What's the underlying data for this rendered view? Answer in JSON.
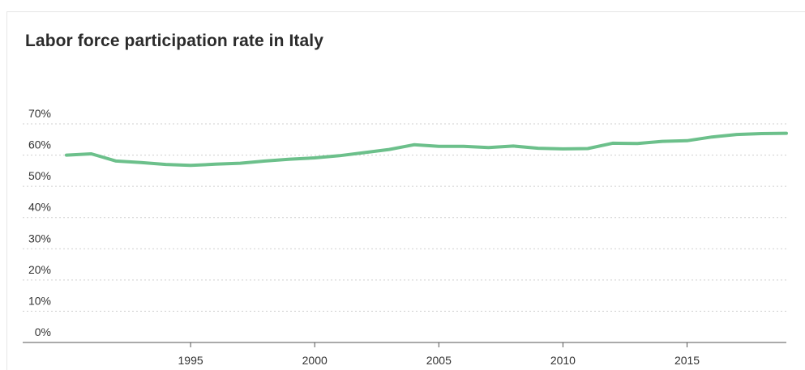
{
  "chart_data": {
    "type": "line",
    "title": "Labor force participation rate in Italy",
    "xlabel": "",
    "ylabel": "",
    "ylim": [
      0,
      70
    ],
    "xlim": [
      1990,
      2019
    ],
    "y_ticks": [
      0,
      10,
      20,
      30,
      40,
      50,
      60,
      70
    ],
    "y_tick_labels": [
      "0%",
      "10%",
      "20%",
      "30%",
      "40%",
      "50%",
      "60%",
      "70%"
    ],
    "x_ticks": [
      1995,
      2000,
      2005,
      2010,
      2015
    ],
    "x_tick_labels": [
      "1995",
      "2000",
      "2005",
      "2010",
      "2015"
    ],
    "grid": true,
    "series": [
      {
        "color": "#6cc08b",
        "x": [
          1990,
          1991,
          1992,
          1993,
          1994,
          1995,
          1996,
          1997,
          1998,
          1999,
          2000,
          2001,
          2002,
          2003,
          2004,
          2005,
          2006,
          2007,
          2008,
          2009,
          2010,
          2011,
          2012,
          2013,
          2014,
          2015,
          2016,
          2017,
          2018,
          2019
        ],
        "y": [
          60.0,
          60.4,
          58.1,
          57.6,
          57.0,
          56.7,
          57.1,
          57.4,
          58.1,
          58.7,
          59.1,
          59.8,
          60.8,
          61.8,
          63.3,
          62.8,
          62.8,
          62.4,
          62.9,
          62.2,
          62.0,
          62.1,
          63.8,
          63.7,
          64.4,
          64.6,
          65.8,
          66.6,
          66.9,
          67.0
        ]
      }
    ]
  }
}
